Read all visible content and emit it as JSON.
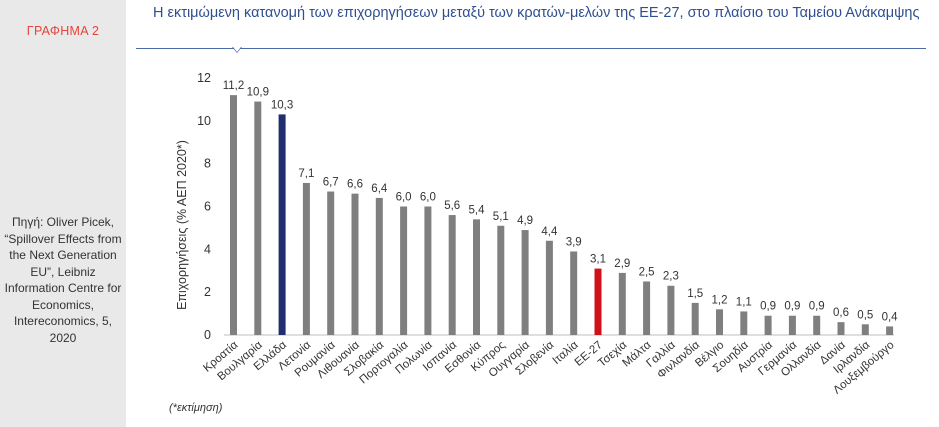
{
  "figure_label": "ΓΡΑΦΗΜΑ 2",
  "source": "Πηγή: Oliver Picek, “Spillover Effects from the Next Generation EU”, Leibniz Information Centre for Economics, Intereconomics, 5, 2020",
  "note": "(*εκτίμηση)",
  "colors": {
    "default_bar": "#7f7f7f",
    "greece": "#1f2e6e",
    "eu27": "#d0111b",
    "title": "#2f4f8f",
    "figure_label": "#e4443b"
  },
  "chart_data": {
    "type": "bar",
    "title": "Η εκτιμώμενη κατανομή των επιχορηγήσεων μεταξύ των κρατών-μελών της ΕΕ-27, στο πλαίσιο του Ταμείου Ανάκαμψης",
    "xlabel": "",
    "ylabel": "Επιχορηγήσεις  (% ΑΕΠ 2020*)",
    "ylim": [
      0,
      12
    ],
    "yticks": [
      0,
      2,
      4,
      6,
      8,
      10,
      12
    ],
    "grid": false,
    "categories": [
      "Κροατία",
      "Βουλγαρία",
      "Ελλάδα",
      "Λετονία",
      "Ρουμανία",
      "Λιθουανία",
      "Σλοβακία",
      "Πορτογαλία",
      "Πολωνία",
      "Ισπανία",
      "Εσθονία",
      "Κύπρος",
      "Ουγγαρία",
      "Σλοβενία",
      "Ιταλία",
      "ΕΕ-27",
      "Τσεχία",
      "Μάλτα",
      "Γαλλία",
      "Φινλανδία",
      "Βέλγιο",
      "Σουηδία",
      "Αυστρία",
      "Γερμανία",
      "Ολλανδία",
      "Δανία",
      "Ιρλανδία",
      "Λουξεμβούργο"
    ],
    "values": [
      11.2,
      10.9,
      10.3,
      7.1,
      6.7,
      6.6,
      6.4,
      6.0,
      6.0,
      5.6,
      5.4,
      5.1,
      4.9,
      4.4,
      3.9,
      3.1,
      2.9,
      2.5,
      2.3,
      1.5,
      1.2,
      1.1,
      0.9,
      0.9,
      0.9,
      0.6,
      0.5,
      0.4
    ],
    "value_labels": [
      "11,2",
      "10,9",
      "10,3",
      "7,1",
      "6,7",
      "6,6",
      "6,4",
      "6,0",
      "6,0",
      "5,6",
      "5,4",
      "5,1",
      "4,9",
      "4,4",
      "3,9",
      "3,1",
      "2,9",
      "2,5",
      "2,3",
      "1,5",
      "1,2",
      "1,1",
      "0,9",
      "0,9",
      "0,9",
      "0,6",
      "0,5",
      "0,4"
    ],
    "highlight": {
      "Ελλάδα": "greece",
      "ΕΕ-27": "eu27"
    }
  }
}
